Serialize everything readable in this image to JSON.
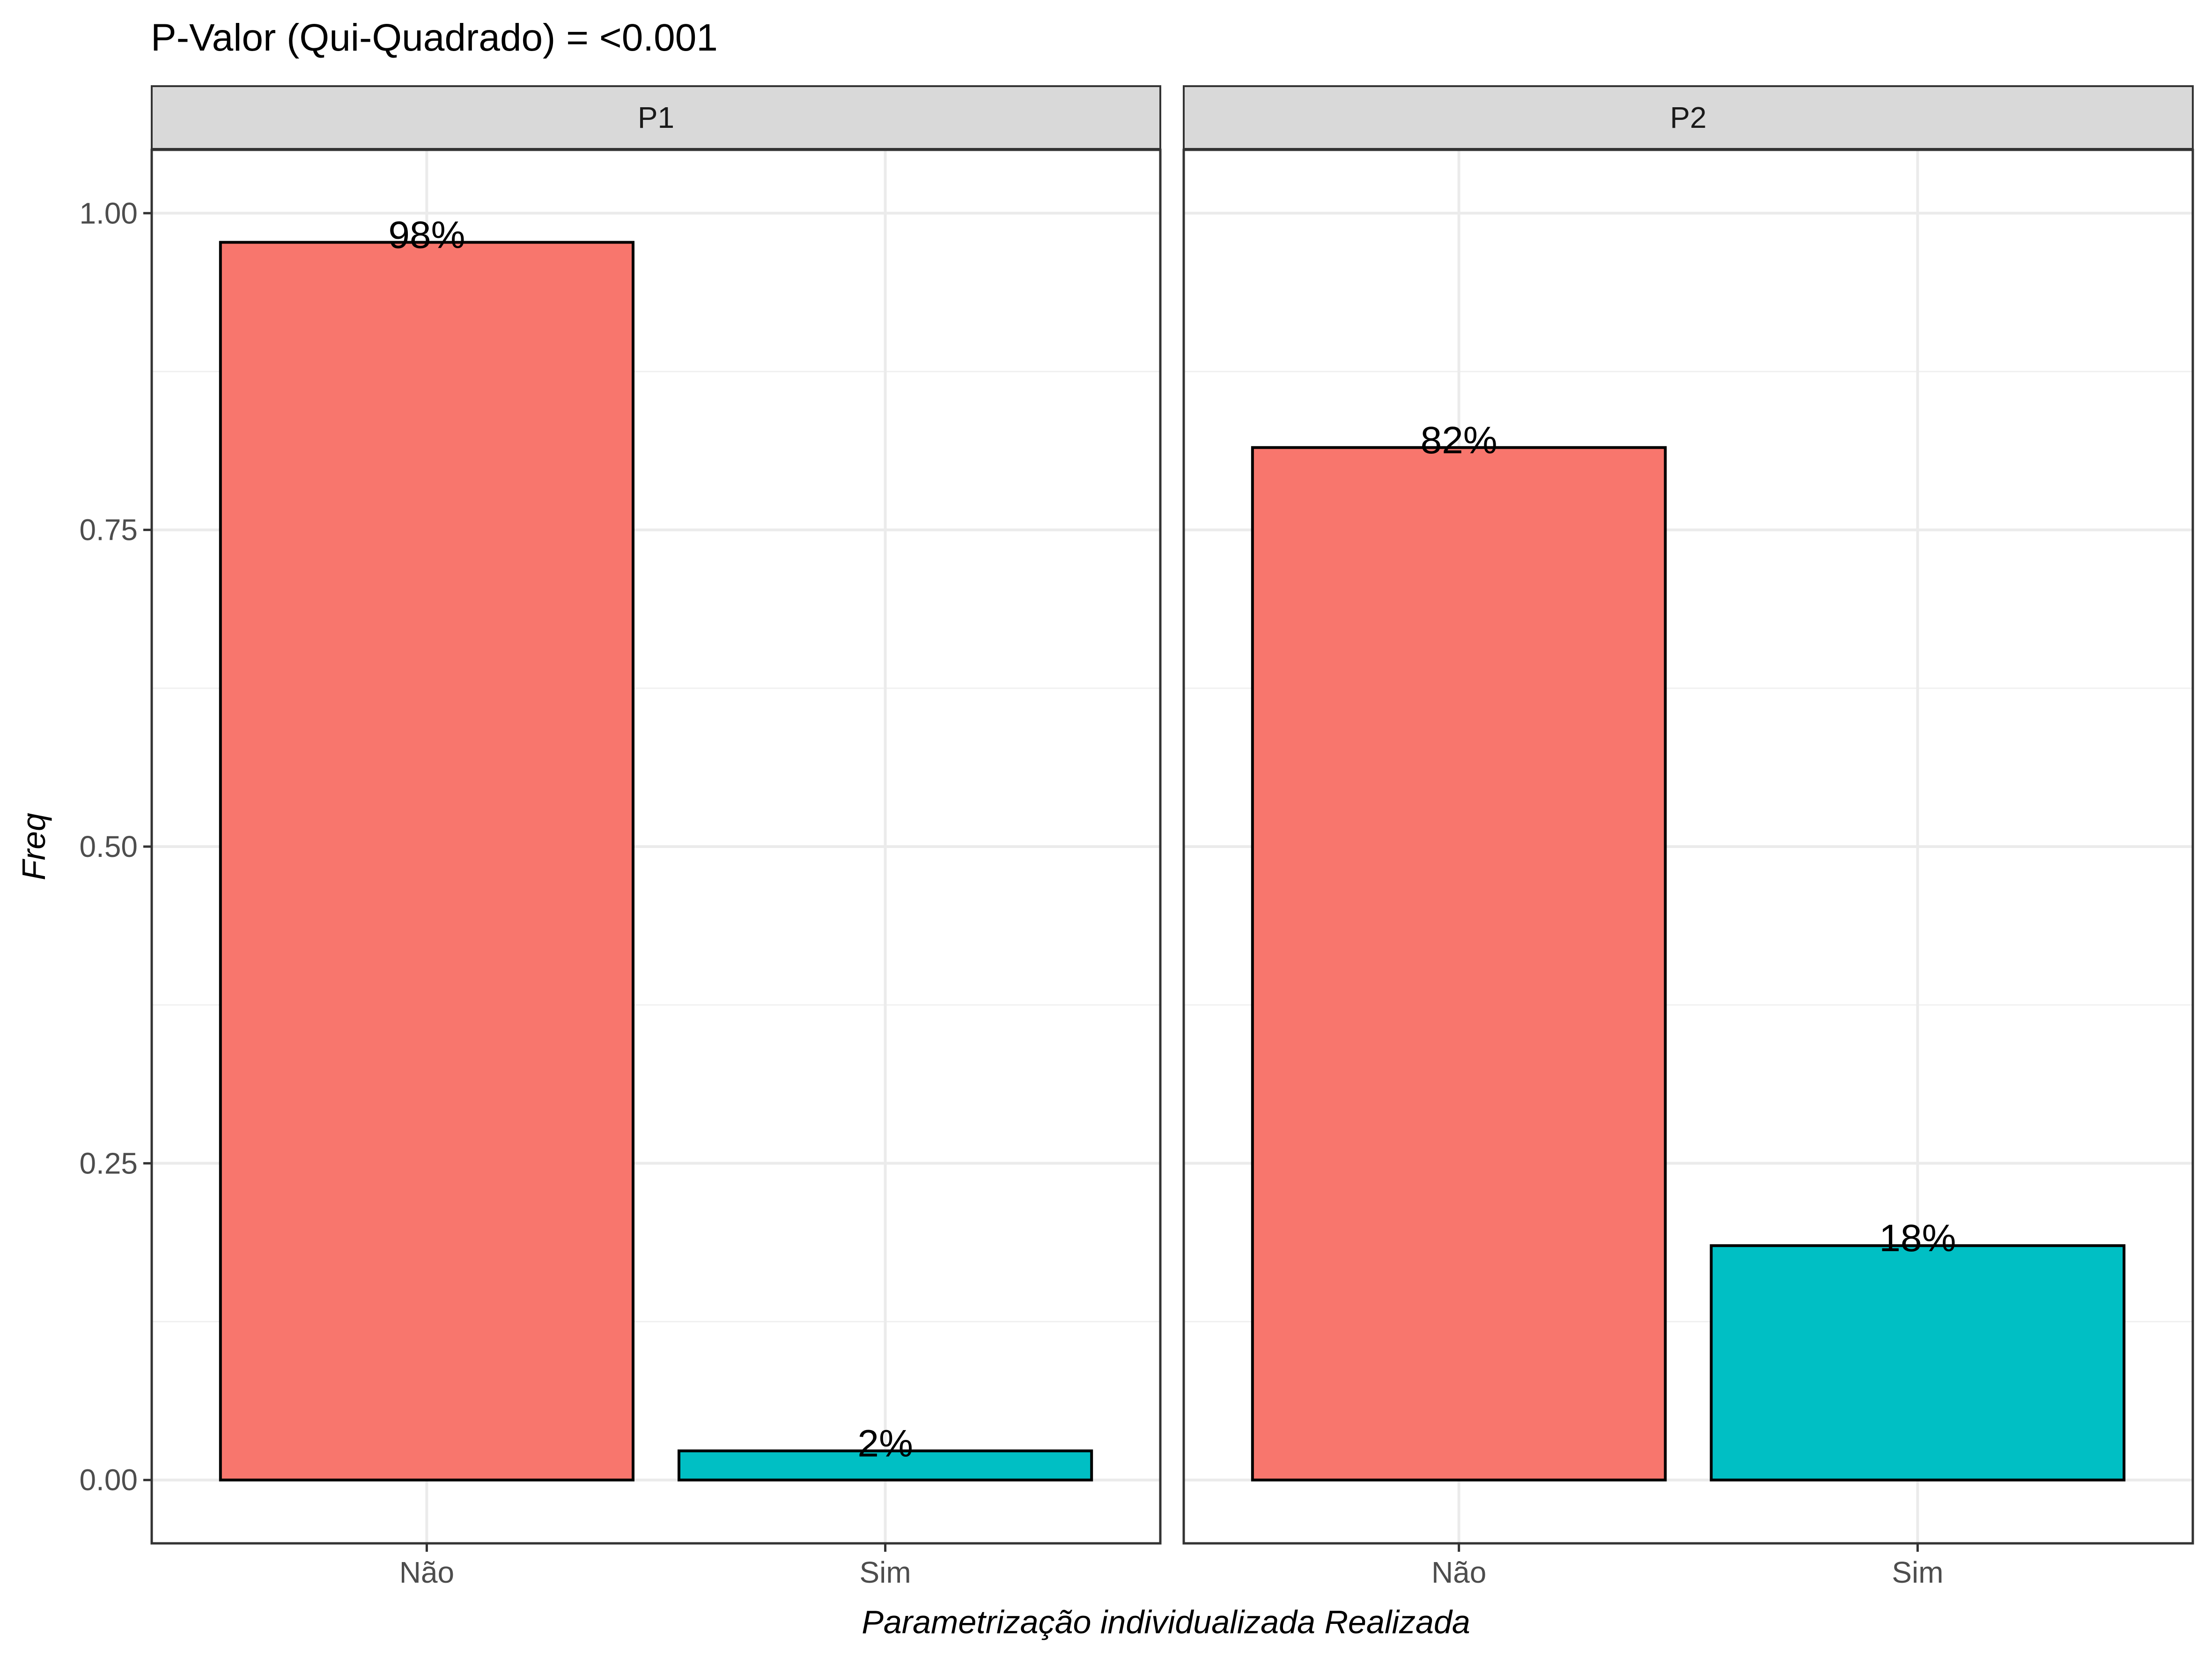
{
  "chart_data": {
    "type": "bar",
    "title": "P-Valor (Qui-Quadrado) = <0.001",
    "xlabel": "Parametrização individualizada Realizada",
    "ylabel": "Freq",
    "categories": [
      "Não",
      "Sim"
    ],
    "ylim": [
      -0.05,
      1.05
    ],
    "yticks": [
      0,
      0.25,
      0.5,
      0.75,
      1
    ],
    "ytick_labels": [
      "0.00",
      "0.25",
      "0.50",
      "0.75",
      "1.00"
    ],
    "grid": true,
    "legend": "none",
    "colors": {
      "Não": "#F8766D",
      "Sim": "#00BFC4"
    },
    "facets": [
      {
        "name": "P1",
        "values": [
          0.977,
          0.023
        ],
        "labels": [
          "98%",
          "2%"
        ]
      },
      {
        "name": "P2",
        "values": [
          0.815,
          0.185
        ],
        "labels": [
          "82%",
          "18%"
        ]
      }
    ]
  }
}
